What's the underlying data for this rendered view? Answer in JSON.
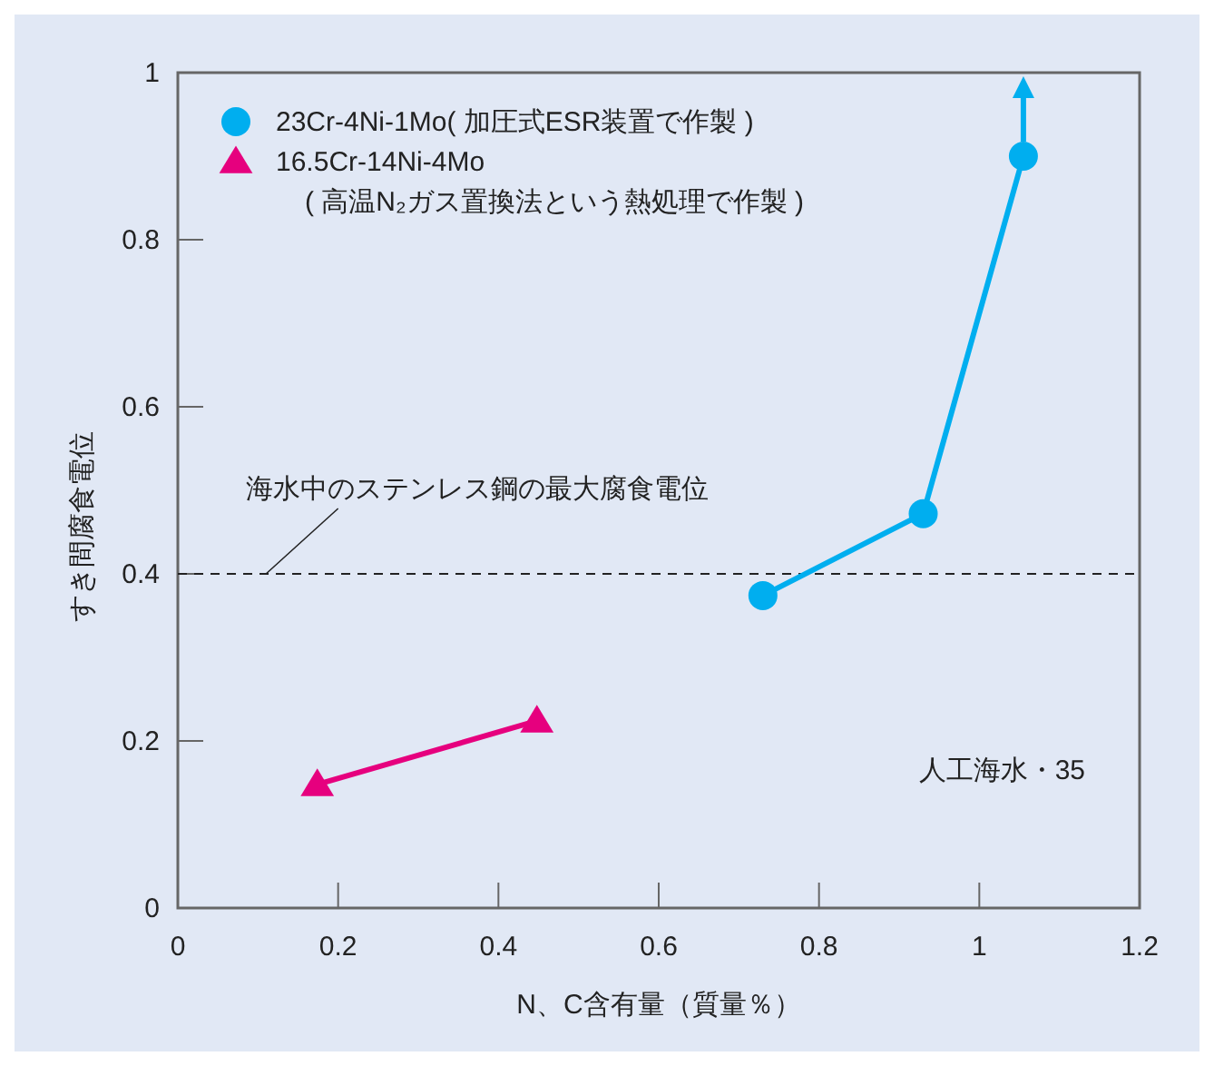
{
  "chart_data": {
    "type": "line",
    "xlabel": "N、C含有量（質量％）",
    "ylabel": "すき間腐食電位",
    "xlim": [
      0,
      1.2
    ],
    "xticks": [
      0,
      0.2,
      0.4,
      0.6,
      0.8,
      1,
      1.2
    ],
    "ylim": [
      0,
      1
    ],
    "yticks": [
      0,
      0.2,
      0.4,
      0.6,
      0.8,
      1
    ],
    "series": [
      {
        "name": "23Cr-4Ni-1Mo( 加圧式ESR装置で作製 )",
        "color": "#00aeef",
        "marker": "circle",
        "x": [
          0.73,
          0.93,
          1.055
        ],
        "values": [
          0.374,
          0.472,
          0.9
        ]
      },
      {
        "name": "16.5Cr-14Ni-4Mo\n( 高温N₂ガス置換法という熱処理で作製 )",
        "color": "#e6007e",
        "marker": "triangle",
        "x": [
          0.174,
          0.448
        ],
        "values": [
          0.148,
          0.224
        ]
      }
    ],
    "ref_lines": [
      {
        "axis": "y",
        "value": 0.4,
        "label": "海水中のステンレス鋼の最大腐食電位",
        "color": "#222222",
        "line_style": "dashed"
      }
    ],
    "annotations": [
      "人工海水・35"
    ],
    "legend": "top left",
    "grid": false
  }
}
